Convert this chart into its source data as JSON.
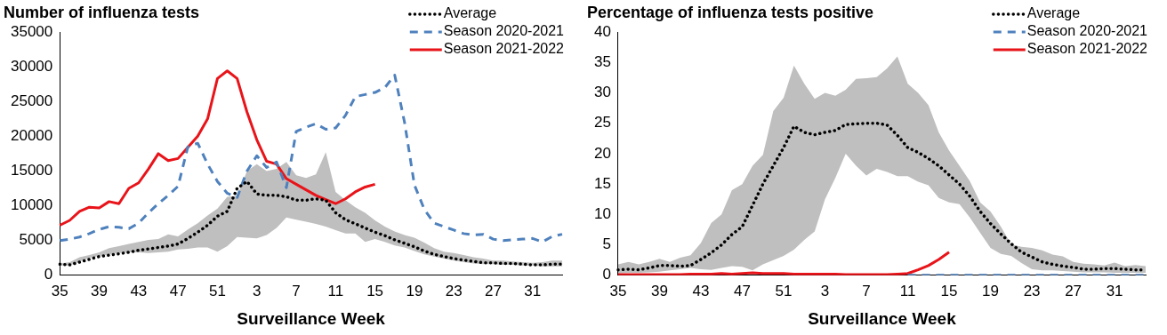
{
  "chart_data": [
    {
      "type": "line",
      "title": "Number of influenza tests",
      "xlabel": "Surveillance Week",
      "categories": [
        "35",
        null,
        null,
        null,
        "39",
        null,
        null,
        null,
        "43",
        null,
        null,
        null,
        "47",
        null,
        null,
        null,
        "51",
        null,
        null,
        null,
        "3",
        null,
        null,
        null,
        "7",
        null,
        null,
        null,
        "11",
        null,
        null,
        null,
        "15",
        null,
        null,
        null,
        "19",
        null,
        null,
        null,
        "23",
        null,
        null,
        null,
        "27",
        null,
        null,
        null,
        "31",
        null,
        null,
        null
      ],
      "ylim": [
        0,
        35000
      ],
      "yticks": [
        0,
        5000,
        10000,
        15000,
        20000,
        25000,
        30000,
        35000
      ],
      "grid": false,
      "legend": "top right",
      "marker": "none",
      "series": [
        {
          "name": "Average",
          "color": "#000000",
          "line_style": "dotted",
          "values": [
            1600,
            1500,
            1900,
            2300,
            2700,
            2900,
            3100,
            3300,
            3600,
            3800,
            4000,
            4200,
            4500,
            5300,
            6200,
            7200,
            8500,
            9200,
            12500,
            13500,
            11700,
            11500,
            11500,
            11300,
            10800,
            10800,
            11000,
            10800,
            9000,
            8000,
            7400,
            6800,
            6200,
            5700,
            5100,
            4600,
            4100,
            3500,
            3000,
            2700,
            2400,
            2200,
            2000,
            1800,
            1800,
            1700,
            1700,
            1600,
            1500,
            1500,
            1600,
            1600
          ],
          "lower": [
            1400,
            1400,
            2000,
            2500,
            2800,
            3000,
            3200,
            3300,
            3300,
            3200,
            3300,
            3400,
            3700,
            3800,
            4000,
            4000,
            3400,
            4200,
            5500,
            5400,
            5300,
            5800,
            6800,
            8300,
            8000,
            7700,
            7400,
            7000,
            6500,
            6000,
            6000,
            4800,
            5200,
            4800,
            4300,
            4000,
            3500,
            3000,
            2700,
            2400,
            2100,
            1900,
            1700,
            1600,
            1600,
            1500,
            1500,
            1400,
            1400,
            1300,
            1300,
            1300
          ],
          "upper": [
            1700,
            1900,
            2600,
            2900,
            3300,
            3900,
            4200,
            4500,
            4800,
            5100,
            5200,
            5900,
            5600,
            6600,
            7500,
            8600,
            9600,
            11300,
            11400,
            15000,
            16000,
            15000,
            15300,
            16300,
            14400,
            14000,
            14500,
            17700,
            12000,
            10800,
            9800,
            9000,
            7900,
            7000,
            6300,
            5800,
            5400,
            4700,
            3900,
            3400,
            3200,
            2900,
            2600,
            2400,
            2100,
            2100,
            2000,
            1900,
            1800,
            1900,
            2100,
            2100
          ]
        },
        {
          "name": "Season 2020-2021",
          "color": "#4f81bd",
          "line_style": "dashed",
          "values": [
            5000,
            5200,
            5500,
            6000,
            6600,
            7000,
            6900,
            6700,
            7500,
            9000,
            10300,
            11500,
            12800,
            18500,
            19000,
            16000,
            13500,
            11800,
            11200,
            15000,
            17200,
            15500,
            16300,
            12600,
            20700,
            21300,
            21800,
            21000,
            21200,
            23000,
            25700,
            26000,
            26300,
            27000,
            28800,
            22000,
            13000,
            9500,
            7500,
            7000,
            6500,
            6000,
            5800,
            5900,
            5200,
            5000,
            5100,
            5200,
            5300,
            4800,
            5600,
            5900
          ]
        },
        {
          "name": "Season 2021-2022",
          "color": "#e8141a",
          "line_style": "solid",
          "values": [
            7200,
            7900,
            9200,
            9800,
            9700,
            10600,
            10300,
            12500,
            13300,
            15300,
            17500,
            16500,
            16800,
            18400,
            20000,
            22500,
            28300,
            29400,
            28300,
            23500,
            19500,
            16400,
            16000,
            13900,
            13100,
            12300,
            11500,
            10900,
            10300,
            11000,
            12000,
            12700,
            13100,
            null,
            null,
            null,
            null,
            null,
            null,
            null,
            null,
            null,
            null,
            null,
            null,
            null,
            null,
            null,
            null,
            null,
            null,
            null
          ]
        }
      ]
    },
    {
      "type": "line",
      "title": "Percentage of influenza tests positive",
      "xlabel": "Surveillance Week",
      "categories": [
        "35",
        null,
        null,
        null,
        "39",
        null,
        null,
        null,
        "43",
        null,
        null,
        null,
        "47",
        null,
        null,
        null,
        "51",
        null,
        null,
        null,
        "3",
        null,
        null,
        null,
        "7",
        null,
        null,
        null,
        "11",
        null,
        null,
        null,
        "15",
        null,
        null,
        null,
        "19",
        null,
        null,
        null,
        "23",
        null,
        null,
        null,
        "27",
        null,
        null,
        null,
        "31",
        null,
        null,
        null
      ],
      "ylim": [
        0,
        40
      ],
      "yticks": [
        0,
        5,
        10,
        15,
        20,
        25,
        30,
        35,
        40
      ],
      "grid": false,
      "legend": "top right",
      "marker": "none",
      "series": [
        {
          "name": "Average",
          "color": "#000000",
          "line_style": "dotted",
          "values": [
            0.9,
            1.0,
            0.9,
            1.2,
            1.6,
            1.6,
            1.5,
            1.6,
            2.6,
            3.7,
            5,
            6.7,
            8,
            11.5,
            15,
            18,
            21,
            24.5,
            23.5,
            23.1,
            23.5,
            23.8,
            24.8,
            24.9,
            25,
            25,
            24.7,
            23,
            21,
            20.2,
            19.2,
            18,
            16.5,
            15,
            13,
            10.5,
            8.5,
            6.8,
            5.2,
            3.8,
            3,
            2.2,
            1.8,
            1.5,
            1.3,
            1,
            1,
            1.1,
            1.1,
            1,
            0.9,
            0.9
          ],
          "lower": [
            0.3,
            0.4,
            0.4,
            0.5,
            0.6,
            0.8,
            1,
            1.2,
            1,
            0.9,
            1.2,
            1.5,
            1.4,
            0.8,
            1.8,
            2.5,
            3.2,
            4.2,
            5.8,
            7.2,
            12.5,
            16,
            20,
            18,
            16.4,
            17.5,
            17,
            16.3,
            16.3,
            15.4,
            14.8,
            12.7,
            12,
            11.7,
            9.5,
            7,
            4.5,
            3.5,
            3.2,
            2,
            1,
            0.8,
            0.8,
            0.7,
            0.6,
            0.5,
            0.5,
            0.5,
            0.4,
            0.4,
            0.4,
            0.4
          ],
          "upper": [
            1.8,
            2.2,
            1.8,
            2.2,
            2.7,
            2.2,
            2.9,
            3.3,
            5.3,
            8.6,
            10,
            14,
            15,
            18,
            19.8,
            27,
            29.2,
            34.5,
            31.5,
            29,
            30,
            29.5,
            30.5,
            32.3,
            32.4,
            32.6,
            34,
            36,
            31.5,
            30,
            28,
            23.5,
            20.5,
            18,
            15.5,
            12,
            10.5,
            8,
            5.1,
            4.7,
            4.5,
            4.1,
            3.4,
            3.1,
            2.2,
            1.9,
            1.8,
            1.6,
            2.1,
            1.5,
            1.7,
            1.5
          ]
        },
        {
          "name": "Season 2020-2021",
          "color": "#4f81bd",
          "line_style": "dashed",
          "values": [
            null,
            null,
            null,
            null,
            null,
            null,
            null,
            null,
            null,
            null,
            null,
            null,
            null,
            null,
            null,
            null,
            null,
            null,
            null,
            null,
            null,
            null,
            null,
            null,
            null,
            null,
            null,
            null,
            0,
            0,
            0,
            0,
            0,
            0,
            0,
            0,
            0,
            0,
            0,
            0,
            0,
            0,
            0,
            0,
            0,
            0,
            0,
            0,
            0,
            0,
            0,
            0
          ]
        },
        {
          "name": "Season 2021-2022",
          "color": "#e8141a",
          "line_style": "solid",
          "values": [
            0.1,
            0.1,
            0.1,
            0.1,
            0.1,
            0.1,
            0.1,
            0.2,
            0.2,
            0.2,
            0.3,
            0.2,
            0.3,
            0.4,
            0.3,
            0.3,
            0.3,
            0.2,
            0.2,
            0.2,
            0.2,
            0.2,
            0.1,
            0.1,
            0.1,
            0.1,
            0.1,
            0.2,
            0.3,
            0.9,
            1.6,
            2.6,
            3.8,
            null,
            null,
            null,
            null,
            null,
            null,
            null,
            null,
            null,
            null,
            null,
            null,
            null,
            null,
            null,
            null,
            null,
            null,
            null
          ]
        }
      ]
    }
  ]
}
